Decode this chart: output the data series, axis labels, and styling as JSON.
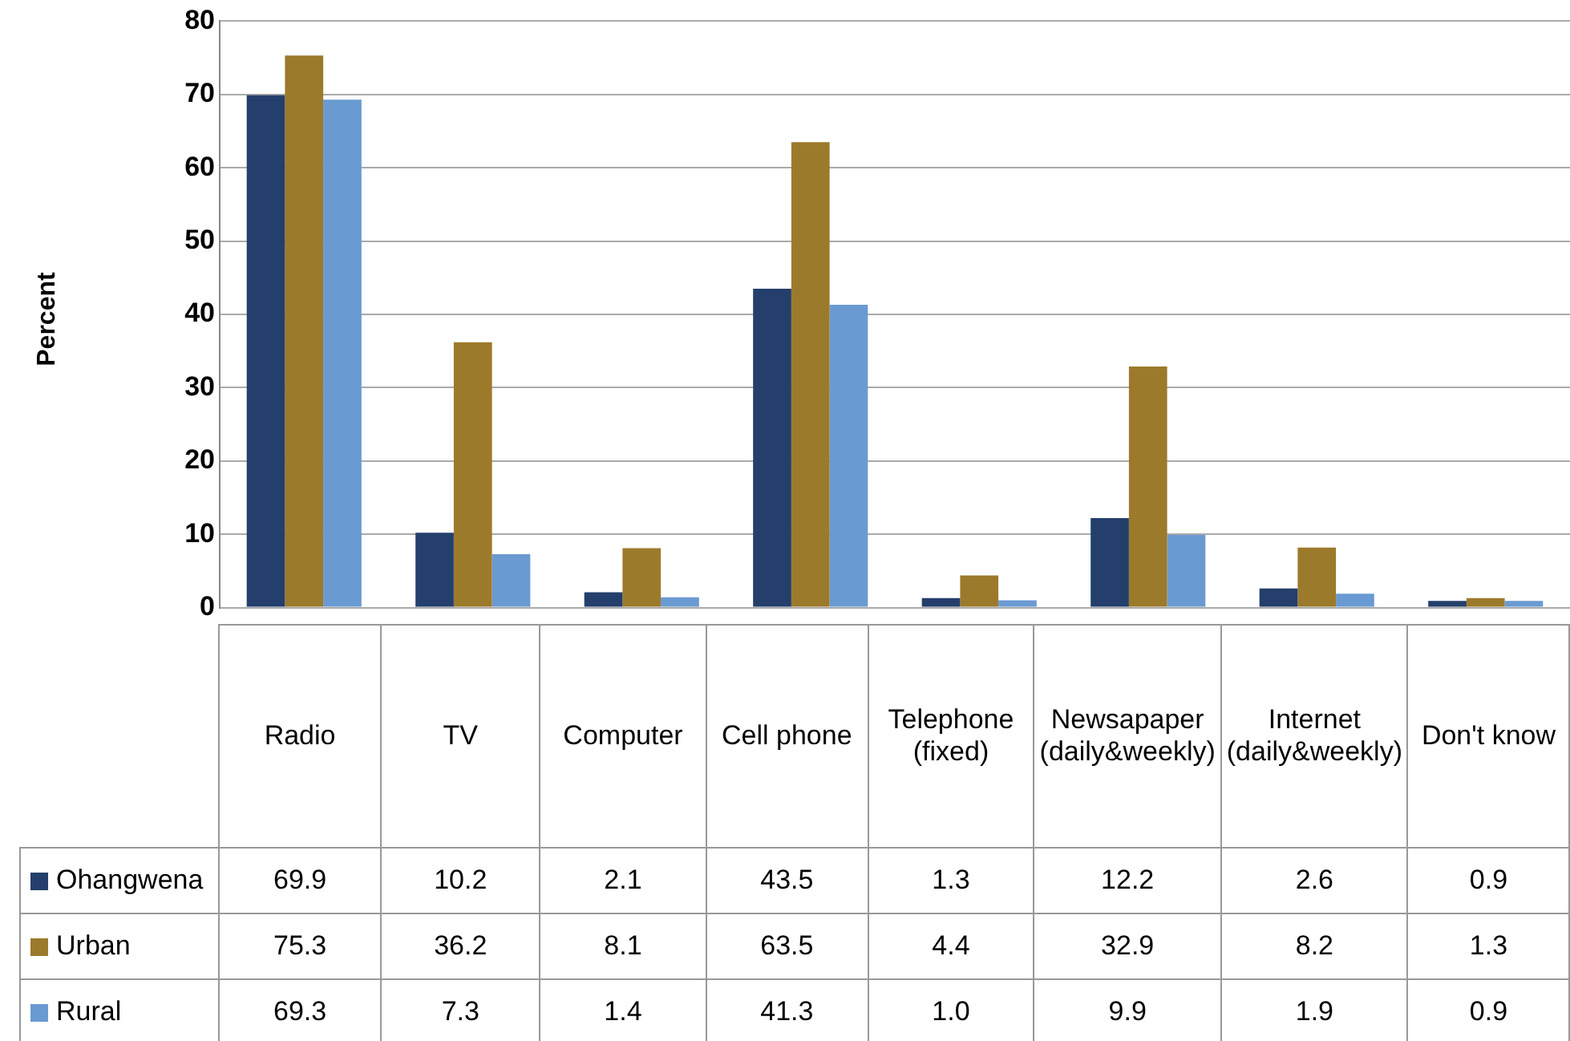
{
  "chart_data": {
    "type": "bar",
    "ylabel": "Percent",
    "categories": [
      "Radio",
      "TV",
      "Computer",
      "Cell phone",
      "Telephone (fixed)",
      "Newsapaper (daily&weekly)",
      "Internet (daily&weekly)",
      "Don't know"
    ],
    "series": [
      {
        "name": "Ohangwena",
        "color": "#243f6b",
        "values": [
          69.9,
          10.2,
          2.1,
          43.5,
          1.3,
          12.2,
          2.6,
          0.9
        ],
        "value_labels": [
          "69.9",
          "10.2",
          "2.1",
          "43.5",
          "1.3",
          "12.2",
          "2.6",
          "0.9"
        ]
      },
      {
        "name": "Urban",
        "color": "#9c7a2c",
        "values": [
          75.3,
          36.2,
          8.1,
          63.5,
          4.4,
          32.9,
          8.2,
          1.3
        ],
        "value_labels": [
          "75.3",
          "36.2",
          "8.1",
          "63.5",
          "4.4",
          "32.9",
          "8.2",
          "1.3"
        ]
      },
      {
        "name": "Rural",
        "color": "#6a9ad2",
        "values": [
          69.3,
          7.3,
          1.4,
          41.3,
          1.0,
          9.9,
          1.9,
          0.9
        ],
        "value_labels": [
          "69.3",
          "7.3",
          "1.4",
          "41.3",
          "1.0",
          "9.9",
          "1.9",
          "0.9"
        ]
      }
    ],
    "ylim": [
      0,
      80
    ],
    "yticks": [
      0,
      10,
      20,
      30,
      40,
      50,
      60,
      70,
      80
    ],
    "grid": "y",
    "legend": "bottom left"
  }
}
